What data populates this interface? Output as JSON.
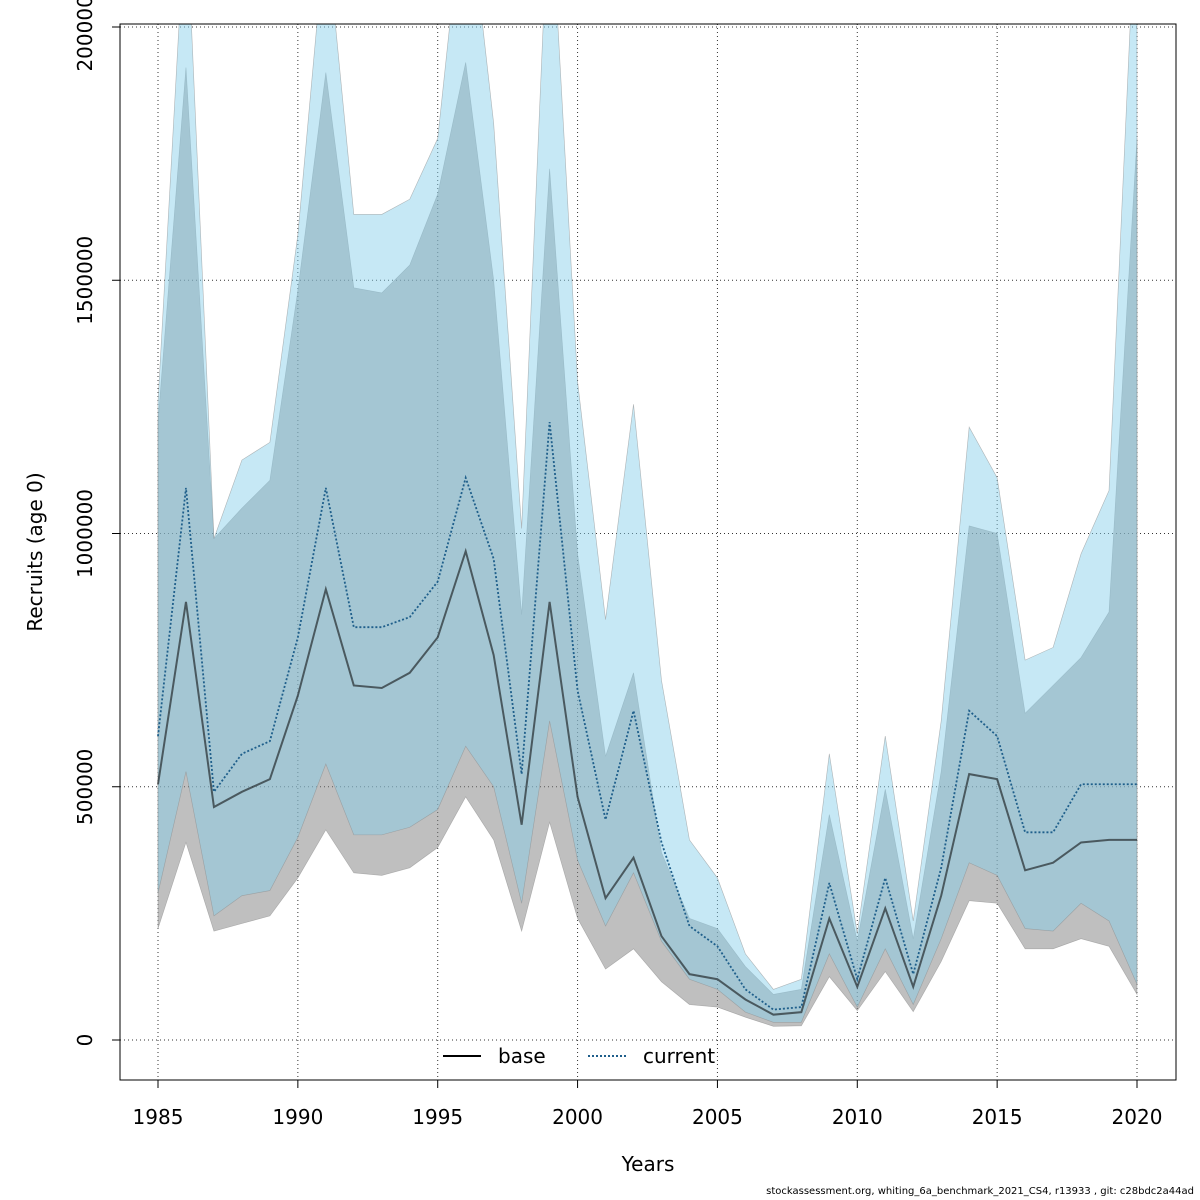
{
  "chart_data": {
    "type": "line",
    "title": "",
    "xlabel": "Years",
    "ylabel": "Recruits (age 0)",
    "xlim": [
      1985,
      2020
    ],
    "ylim": [
      0,
      2000000
    ],
    "x_ticks": [
      1985,
      1990,
      1995,
      2000,
      2005,
      2010,
      2015,
      2020
    ],
    "y_ticks": [
      0,
      500000,
      1000000,
      1500000,
      2000000
    ],
    "x_tick_labels": [
      "1985",
      "1990",
      "1995",
      "2000",
      "2005",
      "2010",
      "2015",
      "2020"
    ],
    "y_tick_labels": [
      "0",
      "500000",
      "1000000",
      "1500000",
      "2000000"
    ],
    "grid": true,
    "legend_position": "bottom",
    "x": [
      1985,
      1986,
      1987,
      1988,
      1989,
      1990,
      1991,
      1992,
      1993,
      1994,
      1995,
      1996,
      1997,
      1998,
      1999,
      2000,
      2001,
      2002,
      2003,
      2004,
      2005,
      2006,
      2007,
      2008,
      2009,
      2010,
      2011,
      2012,
      2013,
      2014,
      2015,
      2016,
      2017,
      2018,
      2019,
      2020
    ],
    "series": [
      {
        "name": "base",
        "line_style": "solid",
        "color": "#000000",
        "band_color": "#808080",
        "values": [
          505000,
          865000,
          460000,
          490000,
          515000,
          680000,
          890000,
          700000,
          695000,
          725000,
          795000,
          965000,
          760000,
          425000,
          865000,
          480000,
          280000,
          360000,
          205000,
          130000,
          120000,
          80000,
          50000,
          55000,
          240000,
          105000,
          260000,
          105000,
          285000,
          525000,
          515000,
          335000,
          350000,
          390000,
          395000,
          395000
        ],
        "lower": [
          220000,
          390000,
          215000,
          230000,
          245000,
          320000,
          415000,
          330000,
          325000,
          340000,
          380000,
          480000,
          395000,
          215000,
          430000,
          240000,
          140000,
          180000,
          115000,
          70000,
          65000,
          45000,
          27000,
          28000,
          125000,
          58000,
          135000,
          56000,
          155000,
          275000,
          270000,
          180000,
          180000,
          200000,
          185000,
          90000
        ],
        "upper": [
          1220000,
          1920000,
          990000,
          1050000,
          1105000,
          1480000,
          1910000,
          1485000,
          1475000,
          1530000,
          1670000,
          1930000,
          1500000,
          840000,
          1720000,
          960000,
          560000,
          725000,
          370000,
          240000,
          220000,
          145000,
          90000,
          100000,
          445000,
          195000,
          495000,
          200000,
          530000,
          1015000,
          1000000,
          645000,
          700000,
          755000,
          845000,
          1780000
        ]
      },
      {
        "name": "current",
        "line_style": "dotted",
        "color": "#1f5f8b",
        "band_color": "#87ceeb",
        "values": [
          600000,
          1090000,
          490000,
          565000,
          590000,
          795000,
          1090000,
          815000,
          815000,
          835000,
          905000,
          1110000,
          950000,
          525000,
          1220000,
          690000,
          435000,
          650000,
          390000,
          225000,
          185000,
          100000,
          60000,
          65000,
          310000,
          120000,
          320000,
          130000,
          340000,
          650000,
          600000,
          410000,
          410000,
          505000,
          505000,
          505000
        ],
        "lower": [
          290000,
          530000,
          245000,
          285000,
          295000,
          400000,
          545000,
          405000,
          405000,
          420000,
          455000,
          580000,
          500000,
          270000,
          630000,
          355000,
          225000,
          330000,
          195000,
          120000,
          100000,
          55000,
          35000,
          35000,
          170000,
          65000,
          180000,
          70000,
          200000,
          350000,
          325000,
          220000,
          215000,
          270000,
          235000,
          110000
        ],
        "upper": [
          1260000,
          2250000,
          990000,
          1145000,
          1180000,
          1590000,
          2200000,
          1630000,
          1630000,
          1660000,
          1780000,
          2300000,
          1810000,
          1010000,
          2300000,
          1300000,
          830000,
          1255000,
          710000,
          395000,
          320000,
          170000,
          100000,
          120000,
          565000,
          210000,
          600000,
          235000,
          630000,
          1210000,
          1110000,
          750000,
          775000,
          960000,
          1085000,
          2300000
        ]
      }
    ]
  },
  "footnote": "stockassessment.org, whiting_6a_benchmark_2021_CS4, r13933 , git: c28bdc2a44ad"
}
